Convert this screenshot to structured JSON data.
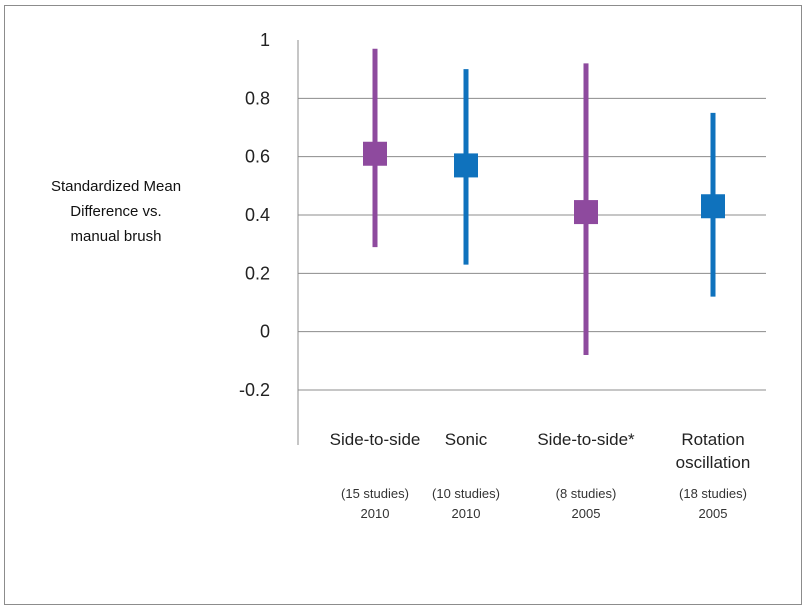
{
  "chart_data": {
    "type": "scatter",
    "ylabel": [
      "Standardized Mean",
      "Difference vs.",
      "manual brush"
    ],
    "ylim": [
      -0.2,
      1
    ],
    "yticks": [
      -0.2,
      0,
      0.2,
      0.4,
      0.6,
      0.8,
      1
    ],
    "ytick_labels": [
      "-0.2",
      "0",
      "0.2",
      "0.4",
      "0.6",
      "0.8",
      "1"
    ],
    "grid": true,
    "categories": [
      {
        "label": [
          "Side-to-side"
        ],
        "studies": "(15 studies)",
        "year": "2010",
        "value": 0.61,
        "low": 0.29,
        "high": 0.97,
        "color": "#8e4a9e"
      },
      {
        "label": [
          "Sonic"
        ],
        "studies": "(10 studies)",
        "year": "2010",
        "value": 0.57,
        "low": 0.23,
        "high": 0.9,
        "color": "#0f72bd"
      },
      {
        "label": [
          "Side-to-side*"
        ],
        "studies": "(8 studies)",
        "year": "2005",
        "value": 0.41,
        "low": -0.08,
        "high": 0.92,
        "color": "#8e4a9e"
      },
      {
        "label": [
          "Rotation",
          "oscillation"
        ],
        "studies": "(18 studies)",
        "year": "2005",
        "value": 0.43,
        "low": 0.12,
        "high": 0.75,
        "color": "#0f72bd"
      }
    ]
  }
}
